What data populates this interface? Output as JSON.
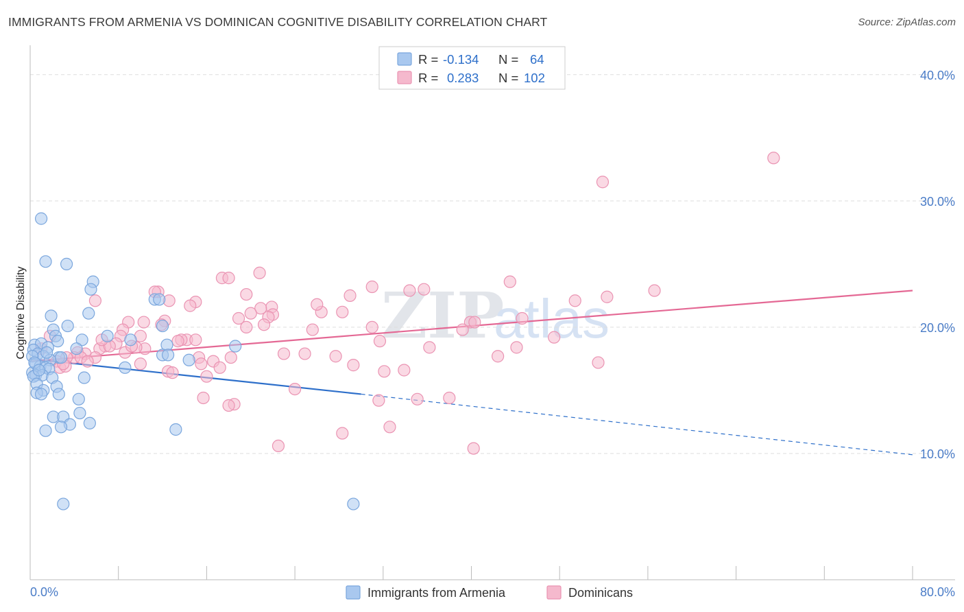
{
  "title": "IMMIGRANTS FROM ARMENIA VS DOMINICAN COGNITIVE DISABILITY CORRELATION CHART",
  "source": "Source: ZipAtlas.com",
  "watermark": {
    "zip": "ZIP",
    "atlas": "atlas"
  },
  "colors": {
    "blue_fill": "#a9c8ef",
    "blue_stroke": "#7aa6dd",
    "blue_line": "#2d6fca",
    "pink_fill": "#f5b9cd",
    "pink_stroke": "#ea93b2",
    "pink_line": "#e46894",
    "axis_text": "#4a7cc7",
    "grid": "#dddddd"
  },
  "legend_top": {
    "rows": [
      {
        "r_label": "R =",
        "r_value": "-0.134",
        "n_label": "N =",
        "n_value": "64"
      },
      {
        "r_label": "R =",
        "r_value": "0.283",
        "n_label": "N =",
        "n_value": "102"
      }
    ]
  },
  "legend_bottom": {
    "items": [
      {
        "label": "Immigrants from Armenia"
      },
      {
        "label": "Dominicans"
      }
    ]
  },
  "chart_data": {
    "type": "scatter",
    "title": "IMMIGRANTS FROM ARMENIA VS DOMINICAN COGNITIVE DISABILITY CORRELATION CHART",
    "xlabel": "",
    "ylabel": "Cognitive Disability",
    "xlim": [
      0,
      80
    ],
    "ylim": [
      0,
      42
    ],
    "x_tick_labels": [
      "0.0%",
      "80.0%"
    ],
    "y_ticks": [
      10,
      20,
      30,
      40
    ],
    "y_tick_labels": [
      "10.0%",
      "20.0%",
      "30.0%",
      "40.0%"
    ],
    "grid": true,
    "legend_position": "top-center",
    "series": [
      {
        "name": "Immigrants from Armenia",
        "r": -0.134,
        "n": 64,
        "trend": {
          "x": [
            0.0,
            30.0
          ],
          "y": [
            17.5,
            14.7
          ],
          "dashed_to": [
            80.0,
            9.9
          ]
        },
        "points": [
          [
            1.0,
            28.6
          ],
          [
            1.4,
            25.2
          ],
          [
            3.3,
            25.0
          ],
          [
            5.7,
            23.6
          ],
          [
            5.5,
            23.0
          ],
          [
            11.3,
            22.2
          ],
          [
            11.7,
            22.2
          ],
          [
            5.3,
            21.1
          ],
          [
            1.9,
            20.9
          ],
          [
            12.0,
            20.1
          ],
          [
            3.4,
            20.1
          ],
          [
            2.1,
            19.8
          ],
          [
            7.0,
            19.3
          ],
          [
            2.3,
            19.3
          ],
          [
            4.7,
            19.0
          ],
          [
            9.1,
            19.0
          ],
          [
            2.5,
            18.9
          ],
          [
            0.4,
            18.6
          ],
          [
            1.0,
            18.7
          ],
          [
            1.6,
            18.4
          ],
          [
            12.4,
            18.6
          ],
          [
            18.6,
            18.5
          ],
          [
            4.2,
            18.3
          ],
          [
            0.3,
            18.2
          ],
          [
            0.7,
            17.9
          ],
          [
            1.2,
            17.7
          ],
          [
            0.2,
            17.7
          ],
          [
            2.6,
            17.6
          ],
          [
            2.8,
            17.6
          ],
          [
            12.0,
            17.8
          ],
          [
            12.5,
            17.8
          ],
          [
            14.4,
            17.4
          ],
          [
            1.8,
            17.4
          ],
          [
            0.5,
            17.1
          ],
          [
            0.9,
            16.9
          ],
          [
            1.4,
            16.8
          ],
          [
            1.7,
            16.7
          ],
          [
            8.6,
            16.8
          ],
          [
            0.2,
            16.4
          ],
          [
            0.5,
            16.2
          ],
          [
            1.1,
            16.2
          ],
          [
            2.0,
            16.0
          ],
          [
            0.3,
            16.1
          ],
          [
            4.9,
            16.0
          ],
          [
            0.6,
            15.5
          ],
          [
            2.4,
            15.3
          ],
          [
            1.2,
            15.0
          ],
          [
            0.6,
            14.8
          ],
          [
            1.0,
            14.7
          ],
          [
            2.6,
            14.7
          ],
          [
            4.4,
            14.3
          ],
          [
            4.5,
            13.2
          ],
          [
            2.1,
            12.9
          ],
          [
            3.0,
            12.9
          ],
          [
            5.4,
            12.4
          ],
          [
            3.6,
            12.3
          ],
          [
            2.8,
            12.1
          ],
          [
            1.4,
            11.8
          ],
          [
            13.2,
            11.9
          ],
          [
            3.0,
            6.0
          ],
          [
            29.3,
            6.0
          ],
          [
            0.4,
            17.2
          ],
          [
            1.5,
            18.0
          ],
          [
            0.8,
            16.6
          ]
        ]
      },
      {
        "name": "Dominicans",
        "r": 0.283,
        "n": 102,
        "trend": {
          "x": [
            0.0,
            80.0
          ],
          "y": [
            17.3,
            22.9
          ]
        },
        "points": [
          [
            67.4,
            33.4
          ],
          [
            51.9,
            31.5
          ],
          [
            20.8,
            24.3
          ],
          [
            17.4,
            23.9
          ],
          [
            18.0,
            23.9
          ],
          [
            43.5,
            23.6
          ],
          [
            31.0,
            23.2
          ],
          [
            11.6,
            22.8
          ],
          [
            11.3,
            22.8
          ],
          [
            34.4,
            22.9
          ],
          [
            35.7,
            23.0
          ],
          [
            56.6,
            22.9
          ],
          [
            19.6,
            22.6
          ],
          [
            29.0,
            22.5
          ],
          [
            52.3,
            22.4
          ],
          [
            12.6,
            22.1
          ],
          [
            15.0,
            22.0
          ],
          [
            49.4,
            22.1
          ],
          [
            5.9,
            22.1
          ],
          [
            21.9,
            21.6
          ],
          [
            14.5,
            21.7
          ],
          [
            20.9,
            21.5
          ],
          [
            20.0,
            21.1
          ],
          [
            26.4,
            21.2
          ],
          [
            22.0,
            21.0
          ],
          [
            28.3,
            21.2
          ],
          [
            21.6,
            20.8
          ],
          [
            18.9,
            20.7
          ],
          [
            12.2,
            20.5
          ],
          [
            11.9,
            20.2
          ],
          [
            10.3,
            20.4
          ],
          [
            8.9,
            20.4
          ],
          [
            44.6,
            20.7
          ],
          [
            39.9,
            20.4
          ],
          [
            40.3,
            20.4
          ],
          [
            19.6,
            20.0
          ],
          [
            31.0,
            20.0
          ],
          [
            25.6,
            19.8
          ],
          [
            39.2,
            19.8
          ],
          [
            8.4,
            19.8
          ],
          [
            10.0,
            19.3
          ],
          [
            1.8,
            19.3
          ],
          [
            47.5,
            19.2
          ],
          [
            8.2,
            19.3
          ],
          [
            14.2,
            19.0
          ],
          [
            15.0,
            19.0
          ],
          [
            13.7,
            19.0
          ],
          [
            31.7,
            18.9
          ],
          [
            7.8,
            18.7
          ],
          [
            6.8,
            18.5
          ],
          [
            6.3,
            18.3
          ],
          [
            7.2,
            18.5
          ],
          [
            10.4,
            18.3
          ],
          [
            36.2,
            18.4
          ],
          [
            44.1,
            18.4
          ],
          [
            4.3,
            18.0
          ],
          [
            8.6,
            18.0
          ],
          [
            9.6,
            18.4
          ],
          [
            5.0,
            17.9
          ],
          [
            23.0,
            17.9
          ],
          [
            24.9,
            17.9
          ],
          [
            27.7,
            17.7
          ],
          [
            42.4,
            17.7
          ],
          [
            4.0,
            17.6
          ],
          [
            4.6,
            17.6
          ],
          [
            3.3,
            17.6
          ],
          [
            5.9,
            17.6
          ],
          [
            15.3,
            17.6
          ],
          [
            16.6,
            17.3
          ],
          [
            18.2,
            17.6
          ],
          [
            2.4,
            17.3
          ],
          [
            5.2,
            17.3
          ],
          [
            10.0,
            17.1
          ],
          [
            51.5,
            17.2
          ],
          [
            15.5,
            17.1
          ],
          [
            29.3,
            17.0
          ],
          [
            2.7,
            16.8
          ],
          [
            17.2,
            16.8
          ],
          [
            3.2,
            16.9
          ],
          [
            12.5,
            16.5
          ],
          [
            12.9,
            16.4
          ],
          [
            16.0,
            16.1
          ],
          [
            32.1,
            16.5
          ],
          [
            33.9,
            16.6
          ],
          [
            24.0,
            15.1
          ],
          [
            15.7,
            14.4
          ],
          [
            35.1,
            14.3
          ],
          [
            38.0,
            14.4
          ],
          [
            31.6,
            14.2
          ],
          [
            18.5,
            13.9
          ],
          [
            18.0,
            13.8
          ],
          [
            32.6,
            12.1
          ],
          [
            28.3,
            11.6
          ],
          [
            22.5,
            10.6
          ],
          [
            40.2,
            10.4
          ],
          [
            1.0,
            18.3
          ],
          [
            3.0,
            17.1
          ],
          [
            9.2,
            18.5
          ],
          [
            13.4,
            18.9
          ],
          [
            21.2,
            20.2
          ],
          [
            26.0,
            21.8
          ],
          [
            6.5,
            19.0
          ]
        ]
      }
    ]
  }
}
